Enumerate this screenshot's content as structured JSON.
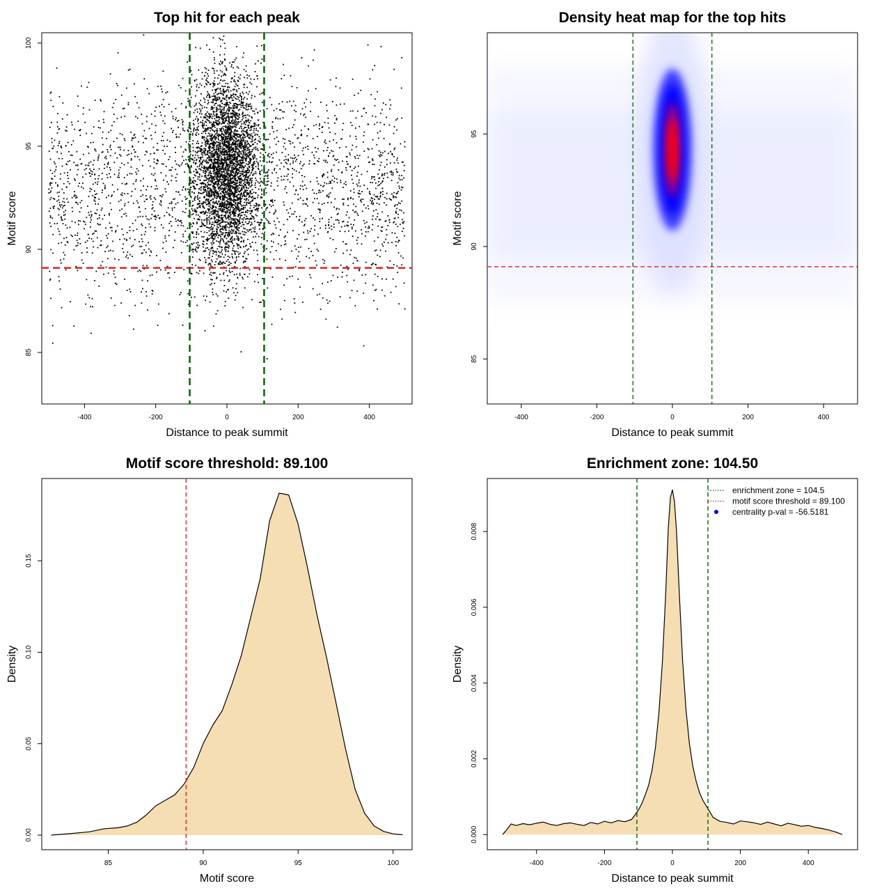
{
  "chart_data": [
    {
      "type": "scatter",
      "title": "Top hit for each peak",
      "xlabel": "Distance to peak summit",
      "ylabel": "Motif score",
      "xlim": [
        -520,
        520
      ],
      "ylim": [
        82.5,
        100.5
      ],
      "xticks": [
        -400,
        -200,
        0,
        200,
        400
      ],
      "yticks": [
        85,
        90,
        95,
        100
      ],
      "threshold_y": 89.1,
      "zone_x": [
        -104.5,
        104.5
      ],
      "threshold_color": "#dd2222",
      "zone_color": "#006400",
      "point_color": "#000000",
      "points_summary": {
        "background": {
          "x_range": [
            -500,
            500
          ],
          "y_mean": 93.0,
          "y_sd": 2.6
        },
        "central": {
          "x_mean": 0,
          "x_sd": 45,
          "y_mean": 94.0,
          "y_sd": 2.3
        }
      }
    },
    {
      "type": "heatmap",
      "title": "Density heat map for the top hits",
      "xlabel": "Distance to peak summit",
      "ylabel": "Motif score",
      "xlim": [
        -490,
        490
      ],
      "ylim": [
        83,
        99.5
      ],
      "xticks": [
        -400,
        -200,
        0,
        200,
        400
      ],
      "yticks": [
        85,
        90,
        95
      ],
      "threshold_y": 89.1,
      "zone_x": [
        -104.5,
        104.5
      ],
      "threshold_color": "#dd2222",
      "zone_color": "#006400",
      "peak": {
        "x": 0,
        "y": 94.3
      },
      "colors": [
        "#ffffff",
        "#0000ff",
        "#ff0000"
      ]
    },
    {
      "type": "area",
      "title": "Motif score threshold: 89.100",
      "xlabel": "Motif score",
      "ylabel": "Density",
      "xlim": [
        81.5,
        101
      ],
      "ylim": [
        -0.008,
        0.195
      ],
      "xticks": [
        85,
        90,
        95,
        100
      ],
      "yticks": [
        0.0,
        0.05,
        0.1,
        0.15
      ],
      "ytick_labels": [
        "0.00",
        "0.05",
        "0.10",
        "0.15"
      ],
      "threshold_x": 89.1,
      "fill_color": "#f5deb3",
      "threshold_color": "#dd2222",
      "x": [
        82,
        83,
        84,
        84.8,
        85.5,
        86,
        86.5,
        87,
        87.5,
        88,
        88.5,
        89,
        89.5,
        90,
        90.5,
        91,
        91.5,
        92,
        92.5,
        93,
        93.5,
        94,
        94.5,
        95,
        95.5,
        96,
        96.5,
        97,
        97.5,
        98,
        98.5,
        99,
        99.5,
        100,
        100.5
      ],
      "y": [
        0,
        0.0008,
        0.0018,
        0.0035,
        0.004,
        0.005,
        0.007,
        0.011,
        0.016,
        0.019,
        0.022,
        0.028,
        0.037,
        0.05,
        0.06,
        0.068,
        0.082,
        0.098,
        0.119,
        0.14,
        0.172,
        0.187,
        0.186,
        0.17,
        0.146,
        0.12,
        0.097,
        0.072,
        0.047,
        0.025,
        0.012,
        0.005,
        0.002,
        0.0007,
        0.0002
      ]
    },
    {
      "type": "area",
      "title": "Enrichment zone: 104.50",
      "xlabel": "Distance to peak summit",
      "ylabel": "Density",
      "xlim": [
        -545,
        545
      ],
      "ylim": [
        -0.0004,
        0.0094
      ],
      "xticks": [
        -400,
        -200,
        0,
        200,
        400
      ],
      "yticks": [
        0.0,
        0.002,
        0.004,
        0.006,
        0.008
      ],
      "ytick_labels": [
        "0.000",
        "0.002",
        "0.004",
        "0.006",
        "0.008"
      ],
      "zone_x": [
        -104.5,
        104.5
      ],
      "fill_color": "#f5deb3",
      "zone_color": "#006400",
      "threshold_color": "#dd2222",
      "pval_color": "#0000ff",
      "x": [
        -500,
        -490,
        -475,
        -460,
        -440,
        -420,
        -400,
        -380,
        -360,
        -340,
        -320,
        -300,
        -280,
        -260,
        -240,
        -220,
        -200,
        -180,
        -160,
        -140,
        -120,
        -110,
        -100,
        -90,
        -80,
        -70,
        -60,
        -50,
        -40,
        -30,
        -20,
        -12,
        -6,
        0,
        6,
        12,
        20,
        30,
        40,
        50,
        60,
        70,
        80,
        90,
        100,
        110,
        120,
        140,
        160,
        180,
        200,
        220,
        240,
        260,
        280,
        300,
        320,
        340,
        360,
        380,
        400,
        420,
        440,
        460,
        480,
        500
      ],
      "y": [
        0.0,
        0.0001,
        0.00028,
        0.00024,
        0.00029,
        0.00026,
        0.0003,
        0.00033,
        0.00027,
        0.00024,
        0.00029,
        0.00031,
        0.00027,
        0.00024,
        0.00032,
        0.00028,
        0.00035,
        0.00031,
        0.00037,
        0.00034,
        0.0004,
        0.00052,
        0.00065,
        0.00082,
        0.00105,
        0.0013,
        0.0017,
        0.0023,
        0.0032,
        0.0045,
        0.0063,
        0.0081,
        0.0089,
        0.0091,
        0.0088,
        0.008,
        0.0064,
        0.0046,
        0.0033,
        0.0024,
        0.0018,
        0.0014,
        0.0011,
        0.0009,
        0.00075,
        0.0006,
        0.00045,
        0.00035,
        0.00032,
        0.00028,
        0.00036,
        0.00034,
        0.00031,
        0.00027,
        0.00033,
        0.00028,
        0.00023,
        0.0003,
        0.00026,
        0.00022,
        0.00024,
        0.00019,
        0.00016,
        0.00012,
        7e-05,
        0.0
      ],
      "legend": [
        {
          "label": "enrichment zone = 104.5",
          "style": "dotted",
          "color": "#006400"
        },
        {
          "label": "motif score threshold = 89.100",
          "style": "dotted",
          "color": "#dd2222"
        },
        {
          "label": "centrality p-val = -56.5181",
          "style": "point",
          "color": "#0000ff"
        }
      ],
      "legend_position": "top-right"
    }
  ]
}
